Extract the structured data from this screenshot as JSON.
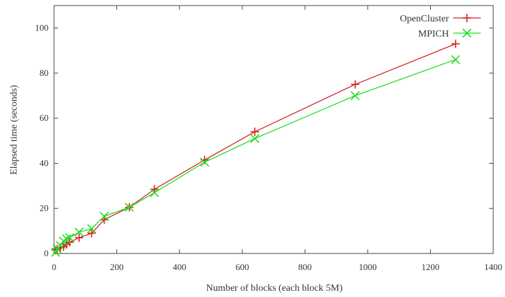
{
  "chart_data": {
    "type": "line",
    "title": "",
    "xlabel": "Number of blocks (each block 5M)",
    "ylabel": "Elapsed time (seconds)",
    "xlim": [
      0,
      1400
    ],
    "ylim": [
      0,
      110
    ],
    "xticks": [
      0,
      200,
      400,
      600,
      800,
      1000,
      1200,
      1400
    ],
    "yticks": [
      0,
      20,
      40,
      60,
      80,
      100
    ],
    "grid": false,
    "legend_position": "top-right",
    "series": [
      {
        "name": "OpenCluster",
        "color": "#d42020",
        "marker": "plus",
        "x": [
          5,
          10,
          20,
          30,
          40,
          50,
          80,
          120,
          160,
          240,
          320,
          480,
          640,
          960,
          1280
        ],
        "y": [
          1.5,
          2,
          2.5,
          3,
          4,
          5,
          7,
          9,
          15,
          20.5,
          28.5,
          41.5,
          54,
          75,
          93
        ]
      },
      {
        "name": "MPICH",
        "color": "#22dd22",
        "marker": "x",
        "x": [
          5,
          10,
          20,
          30,
          40,
          50,
          80,
          120,
          160,
          240,
          320,
          480,
          640,
          960,
          1280
        ],
        "y": [
          0.5,
          2,
          3.5,
          5.5,
          6.5,
          7,
          9.5,
          11,
          16.5,
          20.5,
          27,
          40.5,
          51,
          70,
          86
        ]
      }
    ]
  }
}
